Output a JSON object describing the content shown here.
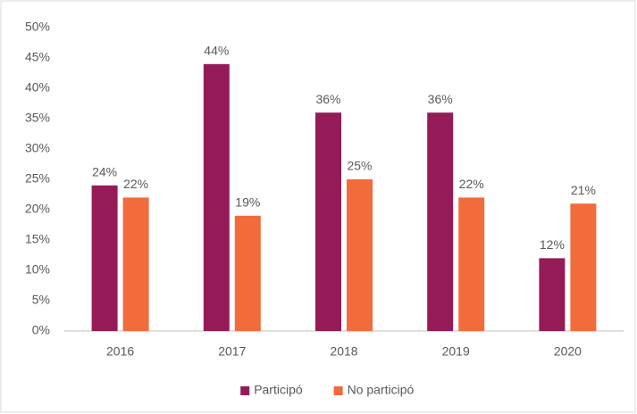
{
  "chart_data": {
    "type": "bar",
    "categories": [
      "2016",
      "2017",
      "2018",
      "2019",
      "2020"
    ],
    "series": [
      {
        "name": "Participó",
        "color": "#951b58",
        "values": [
          24,
          44,
          36,
          36,
          12
        ],
        "value_labels": [
          "24%",
          "44%",
          "36%",
          "36%",
          "12%"
        ]
      },
      {
        "name": "No participó",
        "color": "#f26b3a",
        "values": [
          22,
          19,
          25,
          22,
          21
        ],
        "value_labels": [
          "22%",
          "19%",
          "25%",
          "22%",
          "21%"
        ]
      }
    ],
    "ylim": [
      0,
      50
    ],
    "yticks": [
      {
        "value": 0,
        "label": "0%"
      },
      {
        "value": 5,
        "label": "5%"
      },
      {
        "value": 10,
        "label": "10%"
      },
      {
        "value": 15,
        "label": "15%"
      },
      {
        "value": 20,
        "label": "20%"
      },
      {
        "value": 25,
        "label": "25%"
      },
      {
        "value": 30,
        "label": "30%"
      },
      {
        "value": 35,
        "label": "35%"
      },
      {
        "value": 40,
        "label": "40%"
      },
      {
        "value": 45,
        "label": "45%"
      },
      {
        "value": 50,
        "label": "50%"
      }
    ],
    "grid": false,
    "legend": "bottom"
  }
}
